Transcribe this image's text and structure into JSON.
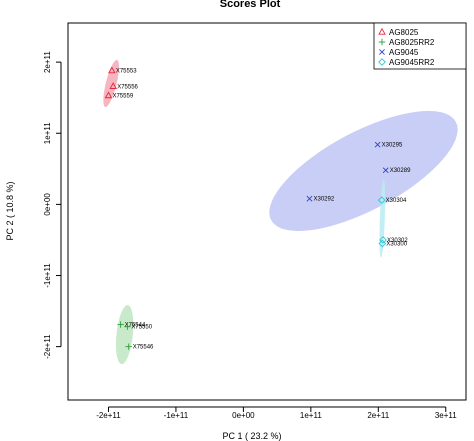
{
  "chart_data": {
    "type": "scatter",
    "title": "Scores Plot",
    "xlabel": "PC 1 ( 23.2 %)",
    "ylabel": "PC 2 ( 10.8 %)",
    "xlim": [
      -260000000000.0,
      330000000000.0
    ],
    "ylim": [
      -275000000000.0,
      255000000000.0
    ],
    "x_ticks": [
      {
        "v": -200000000000.0,
        "label": "-2e+11"
      },
      {
        "v": -100000000000.0,
        "label": "-1e+11"
      },
      {
        "v": 0,
        "label": "0e+00"
      },
      {
        "v": 100000000000.0,
        "label": "1e+11"
      },
      {
        "v": 200000000000.0,
        "label": "2e+11"
      },
      {
        "v": 300000000000.0,
        "label": "3e+11"
      }
    ],
    "y_ticks": [
      {
        "v": -200000000000.0,
        "label": "-2e+11"
      },
      {
        "v": -100000000000.0,
        "label": "-1e+11"
      },
      {
        "v": 0,
        "label": "0e+00"
      },
      {
        "v": 100000000000.0,
        "label": "1e+11"
      },
      {
        "v": 200000000000.0,
        "label": "2e+11"
      }
    ],
    "grid": false,
    "legend": "top-right",
    "series": [
      {
        "name": "AG8025",
        "marker": "triangle",
        "color": "#e8253c",
        "ellipse_fill": "#f4a9b4",
        "points": [
          {
            "label": "X75553",
            "x": -195000000000.0,
            "y": 188000000000.0
          },
          {
            "label": "X75556",
            "x": -193000000000.0,
            "y": 166000000000.0
          },
          {
            "label": "X75559",
            "x": -200000000000.0,
            "y": 153000000000.0
          }
        ],
        "ellipse": {
          "cx": -196000000000.0,
          "cy": 170000000000.0,
          "rx": 36000000000.0,
          "ry": 7500000000.0,
          "angle_deg": -76
        }
      },
      {
        "name": "AG8025RR2",
        "marker": "plus",
        "color": "#2e9b3a",
        "ellipse_fill": "#bfe6c1",
        "points": [
          {
            "label": "X75544",
            "x": -182000000000.0,
            "y": -169000000000.0
          },
          {
            "label": "X75550",
            "x": -172000000000.0,
            "y": -172000000000.0
          },
          {
            "label": "X75546",
            "x": -170000000000.0,
            "y": -200000000000.0
          }
        ],
        "ellipse": {
          "cx": -176000000000.0,
          "cy": -183000000000.0,
          "rx": 44000000000.0,
          "ry": 11500000000.0,
          "angle_deg": -84
        }
      },
      {
        "name": "AG9045",
        "marker": "x",
        "color": "#2b3fd6",
        "ellipse_fill": "#bec6f3",
        "points": [
          {
            "label": "X30295",
            "x": 199000000000.0,
            "y": 84000000000.0
          },
          {
            "label": "X30289",
            "x": 211000000000.0,
            "y": 48000000000.0
          },
          {
            "label": "X30292",
            "x": 98000000000.0,
            "y": 8000000000.0
          }
        ],
        "ellipse": {
          "cx": 178000000000.0,
          "cy": 47000000000.0,
          "rx": 155000000000.0,
          "ry": 55000000000.0,
          "angle_deg": -28
        }
      },
      {
        "name": "AG9045RR2",
        "marker": "diamond",
        "color": "#33c4d6",
        "ellipse_fill": "#b9ecf2",
        "points": [
          {
            "label": "X30304",
            "x": 205000000000.0,
            "y": 6000000000.0
          },
          {
            "label": "X30302",
            "x": 207000000000.0,
            "y": -50000000000.0
          },
          {
            "label": "X30300",
            "x": 206000000000.0,
            "y": -55000000000.0
          }
        ],
        "ellipse": {
          "cx": 206000000000.0,
          "cy": -20000000000.0,
          "rx": 58000000000.0,
          "ry": 3500000000.0,
          "angle_deg": -88
        }
      }
    ]
  }
}
